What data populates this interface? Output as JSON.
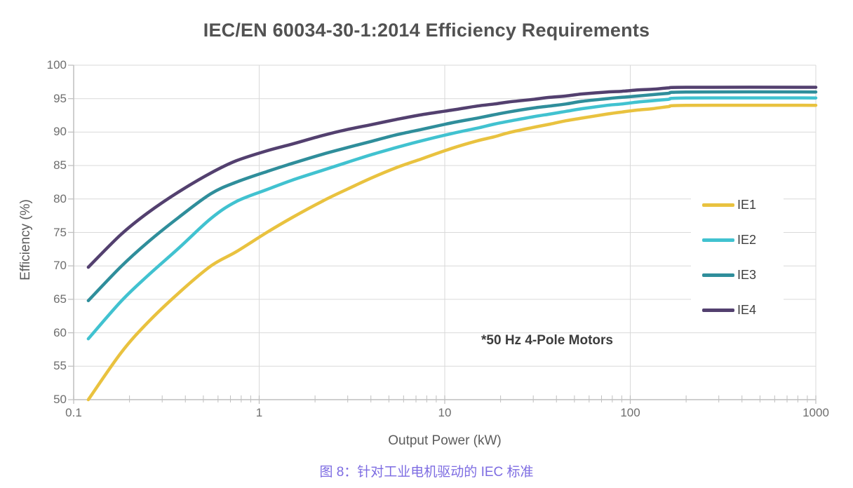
{
  "chart_data": {
    "type": "line",
    "title": "IEC/EN 60034-30-1:2014 Efficiency Requirements",
    "xlabel": "Output Power (kW)",
    "ylabel": "Efficiency (%)",
    "annotation": "*50 Hz 4-Pole Motors",
    "x_scale": "log",
    "xlim": [
      0.1,
      1000
    ],
    "ylim": [
      50,
      100
    ],
    "x_ticks": [
      "0.1",
      "1",
      "10",
      "100",
      "1000"
    ],
    "y_ticks": [
      50,
      55,
      60,
      65,
      70,
      75,
      80,
      85,
      90,
      95,
      100
    ],
    "grid": true,
    "legend_position": "right-inside",
    "x": [
      0.12,
      0.18,
      0.25,
      0.37,
      0.55,
      0.75,
      1.1,
      1.5,
      2.2,
      3,
      4,
      5.5,
      7.5,
      11,
      15,
      18.5,
      22,
      30,
      37,
      45,
      55,
      75,
      90,
      110,
      132,
      160,
      200,
      1000
    ],
    "series": [
      {
        "name": "IE1",
        "color": "#E9C23F",
        "values": [
          50.0,
          57.0,
          61.5,
          66.0,
          70.0,
          72.1,
          75.0,
          77.2,
          79.7,
          81.5,
          83.1,
          84.7,
          86.0,
          87.6,
          88.7,
          89.3,
          89.9,
          90.7,
          91.2,
          91.7,
          92.1,
          92.7,
          93.0,
          93.3,
          93.5,
          93.8,
          94.0,
          94.0
        ]
      },
      {
        "name": "IE2",
        "color": "#41C2D0",
        "values": [
          59.1,
          64.7,
          68.5,
          72.7,
          77.1,
          79.6,
          81.4,
          82.8,
          84.3,
          85.5,
          86.6,
          87.7,
          88.7,
          89.8,
          90.6,
          91.2,
          91.6,
          92.3,
          92.7,
          93.1,
          93.5,
          94.0,
          94.2,
          94.5,
          94.7,
          94.9,
          95.1,
          95.1
        ]
      },
      {
        "name": "IE3",
        "color": "#2F8E9B",
        "values": [
          64.8,
          69.9,
          73.5,
          77.3,
          80.8,
          82.5,
          84.1,
          85.3,
          86.7,
          87.7,
          88.6,
          89.6,
          90.4,
          91.4,
          92.1,
          92.6,
          93.0,
          93.6,
          93.9,
          94.2,
          94.6,
          95.0,
          95.2,
          95.4,
          95.6,
          95.8,
          96.0,
          96.0
        ]
      },
      {
        "name": "IE4",
        "color": "#53406F",
        "values": [
          69.8,
          74.7,
          77.9,
          81.1,
          83.9,
          85.7,
          87.2,
          88.2,
          89.5,
          90.4,
          91.1,
          91.9,
          92.6,
          93.3,
          93.9,
          94.2,
          94.5,
          94.9,
          95.2,
          95.4,
          95.7,
          96.0,
          96.1,
          96.3,
          96.4,
          96.6,
          96.7,
          96.7
        ]
      }
    ]
  },
  "colors": {
    "grid": "#D9D9D9",
    "axis": "#BFBFBF",
    "tick_text": "#6E6E6E"
  },
  "caption": {
    "text": "图 8：针对工业电机驱动的 IEC 标准"
  }
}
